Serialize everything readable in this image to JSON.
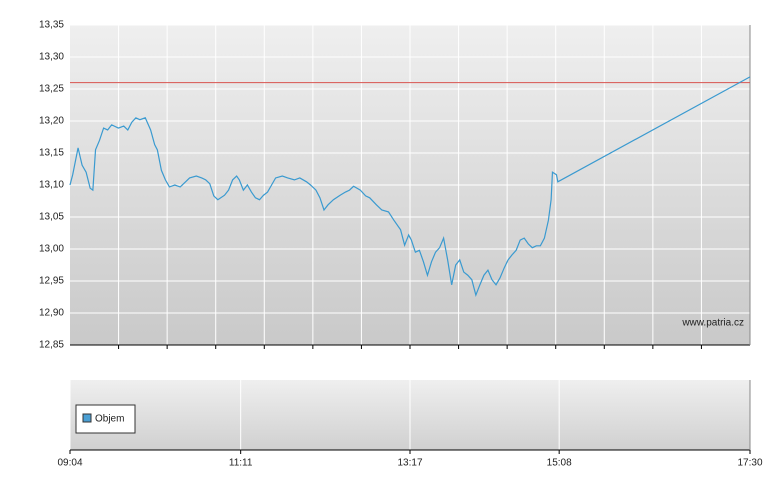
{
  "chart_data": {
    "type": "line",
    "x": [
      544,
      546,
      550,
      553,
      556,
      559,
      561,
      563,
      566,
      569,
      572,
      575,
      580,
      584,
      587,
      590,
      593,
      596,
      600,
      604,
      607,
      609,
      612,
      615,
      618,
      622,
      626,
      630,
      633,
      638,
      642,
      645,
      648,
      651,
      654,
      659,
      662,
      665,
      668,
      670,
      673,
      676,
      679,
      682,
      685,
      688,
      691,
      694,
      697,
      702,
      706,
      711,
      715,
      720,
      723,
      727,
      730,
      733,
      736,
      740,
      745,
      749,
      752,
      755,
      760,
      764,
      767,
      772,
      776,
      781,
      785,
      790,
      793,
      796,
      798,
      801,
      804,
      807,
      810,
      813,
      816,
      819,
      822,
      825,
      828,
      831,
      834,
      837,
      840,
      843,
      846,
      849,
      852,
      855,
      858,
      861,
      864,
      867,
      870,
      873,
      876,
      879,
      882,
      885,
      888,
      891,
      894,
      897,
      900,
      902,
      903,
      906,
      907,
      1050
    ],
    "series": [
      {
        "color": "#3a9ad0",
        "values": [
          13.1,
          13.116,
          13.158,
          13.131,
          13.12,
          13.095,
          13.092,
          13.155,
          13.17,
          13.189,
          13.186,
          13.194,
          13.189,
          13.192,
          13.186,
          13.198,
          13.205,
          13.202,
          13.205,
          13.186,
          13.163,
          13.155,
          13.123,
          13.108,
          13.097,
          13.1,
          13.097,
          13.105,
          13.111,
          13.114,
          13.111,
          13.108,
          13.102,
          13.083,
          13.077,
          13.084,
          13.092,
          13.108,
          13.114,
          13.108,
          13.092,
          13.1,
          13.089,
          13.08,
          13.077,
          13.084,
          13.089,
          13.1,
          13.111,
          13.114,
          13.111,
          13.108,
          13.111,
          13.105,
          13.1,
          13.092,
          13.08,
          13.061,
          13.069,
          13.077,
          13.084,
          13.089,
          13.092,
          13.098,
          13.092,
          13.083,
          13.08,
          13.069,
          13.061,
          13.058,
          13.045,
          13.03,
          13.006,
          13.022,
          13.014,
          12.995,
          12.998,
          12.98,
          12.959,
          12.98,
          12.995,
          13.002,
          13.017,
          12.983,
          12.944,
          12.975,
          12.983,
          12.964,
          12.959,
          12.952,
          12.928,
          12.944,
          12.959,
          12.967,
          12.952,
          12.944,
          12.955,
          12.97,
          12.983,
          12.991,
          12.998,
          13.014,
          13.017,
          13.008,
          13.002,
          13.005,
          13.005,
          13.017,
          13.045,
          13.077,
          13.12,
          13.116,
          13.105,
          13.269
        ]
      }
    ],
    "reference_line": {
      "value": 13.26,
      "color": "#d9534f"
    },
    "volume_legend": {
      "name": "Objem",
      "color": "#4a9fd4"
    },
    "watermark": "www.patria.cz",
    "xlim": [
      544,
      1050
    ],
    "xticks": [
      {
        "value": 544,
        "label": "09:04"
      },
      {
        "value": 671,
        "label": "11:11"
      },
      {
        "value": 797,
        "label": "13:17"
      },
      {
        "value": 908,
        "label": "15:08"
      },
      {
        "value": 1050,
        "label": "17:30"
      }
    ],
    "ylim": [
      12.85,
      13.35
    ],
    "yticks": [
      {
        "value": 12.85,
        "label": "12,85"
      },
      {
        "value": 12.9,
        "label": "12,90"
      },
      {
        "value": 12.95,
        "label": "12,95"
      },
      {
        "value": 13.0,
        "label": "13,00"
      },
      {
        "value": 13.05,
        "label": "13,05"
      },
      {
        "value": 13.1,
        "label": "13,10"
      },
      {
        "value": 13.15,
        "label": "13,15"
      },
      {
        "value": 13.2,
        "label": "13,20"
      },
      {
        "value": 13.25,
        "label": "13,25"
      },
      {
        "value": 13.3,
        "label": "13,30"
      },
      {
        "value": 13.35,
        "label": "13,35"
      }
    ],
    "grid": true
  }
}
